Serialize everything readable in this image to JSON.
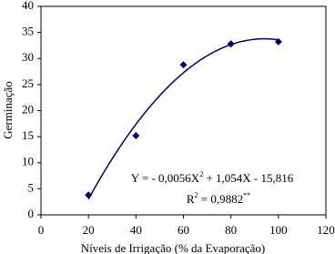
{
  "chart_data": {
    "type": "scatter",
    "x": [
      20,
      40,
      60,
      80,
      100
    ],
    "values": [
      3.8,
      15.2,
      28.8,
      32.8,
      33.2
    ],
    "color": "#000066",
    "xlim": [
      0,
      120
    ],
    "xticks": [
      0,
      20,
      40,
      60,
      80,
      100,
      120
    ],
    "ylim": [
      0,
      40
    ],
    "yticks": [
      0,
      5,
      10,
      15,
      20,
      25,
      30,
      35,
      40
    ],
    "grid": false,
    "xlabel": "Níveis de Irrigação (% da Evaporação)",
    "ylabel": "Germinação",
    "trend": {
      "coefficients": [
        -15.816,
        1.054,
        -0.0056
      ],
      "color": "#000066"
    },
    "annotations": {
      "equation": [
        "Y = - 0,0056X",
        "2",
        " + 1,054X - 15,816"
      ],
      "r2": [
        "R",
        "2",
        " = 0,9882",
        "**"
      ]
    }
  }
}
